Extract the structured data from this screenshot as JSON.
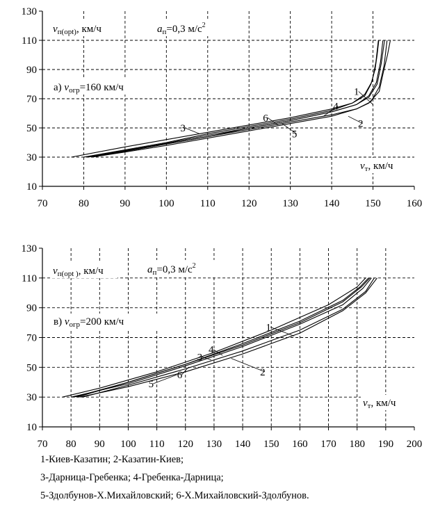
{
  "chart_data": [
    {
      "type": "line",
      "panel_label": "а)",
      "ylabel_main": "v",
      "ylabel_sub": "п(opt)",
      "ylabel_unit": ", км/ч",
      "accel_main": "a",
      "accel_sub": "п",
      "accel_value": "=0,3 м/с",
      "accel_exp": "2",
      "limit_main": "v",
      "limit_sub": "огр",
      "limit_value": "=160 км/ч",
      "xlabel_main": "v",
      "xlabel_sub": "т",
      "xlabel_unit": ", км/ч",
      "xlim": [
        70,
        160
      ],
      "ylim": [
        10,
        130
      ],
      "xticks": [
        70,
        80,
        90,
        100,
        110,
        120,
        130,
        140,
        150,
        160
      ],
      "yticks": [
        10,
        30,
        50,
        70,
        90,
        110,
        130
      ],
      "grid": true,
      "series": [
        {
          "name": "1",
          "x": [
            77,
            90,
            100,
            110,
            120,
            130,
            140,
            145,
            148,
            149.5,
            150.5,
            151,
            151.4
          ],
          "y": [
            30,
            37,
            42,
            47,
            52,
            57,
            63,
            67,
            72,
            80,
            90,
            100,
            110
          ]
        },
        {
          "name": "2",
          "x": [
            82,
            90,
            100,
            110,
            120,
            130,
            140,
            146,
            149,
            151.5,
            152.5,
            153.5,
            154.2
          ],
          "y": [
            30,
            34,
            39,
            44,
            49,
            54,
            59,
            63,
            67,
            75,
            88,
            100,
            110
          ]
        },
        {
          "name": "3",
          "x": [
            80,
            90,
            100,
            110,
            120,
            130,
            140,
            145,
            148,
            149.8,
            150.7,
            151.3
          ],
          "y": [
            30,
            35,
            40,
            46,
            51,
            56,
            62,
            67,
            73,
            82,
            95,
            110
          ]
        },
        {
          "name": "4",
          "x": [
            81,
            90,
            100,
            110,
            120,
            130,
            140,
            146,
            149,
            150.8,
            151.8,
            152.4
          ],
          "y": [
            30,
            34,
            39,
            44,
            50,
            55,
            61,
            66,
            72,
            81,
            95,
            110
          ]
        },
        {
          "name": "5",
          "x": [
            82,
            90,
            100,
            110,
            120,
            130,
            140,
            146,
            149.5,
            151.5,
            152.7,
            153.4
          ],
          "y": [
            30,
            33.5,
            38,
            43,
            48,
            53,
            58,
            63,
            68,
            78,
            93,
            110
          ]
        },
        {
          "name": "6",
          "x": [
            80,
            90,
            100,
            110,
            120,
            130,
            140,
            146,
            149,
            151,
            152,
            152.8
          ],
          "y": [
            30,
            34.5,
            39.5,
            45,
            50,
            55,
            61,
            66,
            71,
            80,
            94,
            110
          ]
        }
      ],
      "curve_labels": [
        {
          "text": "1",
          "x": 146,
          "y": 75,
          "tx": 150,
          "ty": 66
        },
        {
          "text": "4",
          "x": 141,
          "y": 65,
          "tx": 138,
          "ty": 58
        },
        {
          "text": "6",
          "x": 124,
          "y": 57,
          "tx": 127,
          "ty": 52
        },
        {
          "text": "3",
          "x": 104,
          "y": 50,
          "tx": 108,
          "ty": 46
        },
        {
          "text": "5",
          "x": 131,
          "y": 46,
          "tx": 128,
          "ty": 53
        },
        {
          "text": "2",
          "x": 147,
          "y": 53,
          "tx": 144,
          "ty": 58
        }
      ]
    },
    {
      "type": "line",
      "panel_label": "в)",
      "ylabel_main": "v",
      "ylabel_sub": "п(opt )",
      "ylabel_unit": ", км/ч",
      "accel_main": "a",
      "accel_sub": "п",
      "accel_value": "=0,3 м/с",
      "accel_exp": "2",
      "limit_main": "v",
      "limit_sub": "огр",
      "limit_value": "=200 км/ч",
      "xlabel_main": "v",
      "xlabel_sub": "т",
      "xlabel_unit": ", км/ч",
      "xlim": [
        70,
        200
      ],
      "ylim": [
        10,
        130
      ],
      "xticks": [
        70,
        80,
        90,
        100,
        110,
        120,
        130,
        140,
        150,
        160,
        170,
        180,
        190,
        200
      ],
      "yticks": [
        10,
        30,
        50,
        70,
        90,
        110,
        130
      ],
      "grid": true,
      "series": [
        {
          "name": "1",
          "x": [
            77,
            90,
            110,
            130,
            150,
            170,
            180,
            183
          ],
          "y": [
            30,
            36,
            47,
            60,
            75,
            92,
            104,
            110
          ]
        },
        {
          "name": "2",
          "x": [
            83,
            100,
            120,
            140,
            160,
            175,
            183,
            187
          ],
          "y": [
            30,
            37,
            47,
            59,
            73,
            88,
            100,
            110
          ]
        },
        {
          "name": "3",
          "x": [
            80,
            100,
            120,
            140,
            160,
            175,
            182,
            185
          ],
          "y": [
            30,
            39,
            51,
            64,
            79,
            92,
            103,
            110
          ]
        },
        {
          "name": "4",
          "x": [
            81,
            100,
            120,
            140,
            160,
            175,
            181.5,
            184.5
          ],
          "y": [
            30,
            40,
            52,
            65,
            80,
            94,
            104,
            110
          ]
        },
        {
          "name": "5",
          "x": [
            84,
            100,
            120,
            140,
            160,
            175,
            183,
            186
          ],
          "y": [
            30,
            38,
            49,
            61,
            75,
            89,
            101,
            110
          ]
        },
        {
          "name": "6",
          "x": [
            82,
            100,
            120,
            140,
            160,
            175,
            181,
            184
          ],
          "y": [
            30,
            40,
            52,
            66,
            81,
            95,
            104,
            110
          ]
        }
      ],
      "curve_labels": [
        {
          "text": "1",
          "x": 149,
          "y": 77,
          "tx": 158,
          "ty": 71
        },
        {
          "text": "4",
          "x": 129,
          "y": 62,
          "tx": 133,
          "ty": 58
        },
        {
          "text": "3",
          "x": 125,
          "y": 57,
          "tx": 129,
          "ty": 55
        },
        {
          "text": "2",
          "x": 147,
          "y": 47,
          "tx": 136,
          "ty": 56
        },
        {
          "text": "6",
          "x": 118,
          "y": 45,
          "tx": 121,
          "ty": 50
        },
        {
          "text": "5",
          "x": 108,
          "y": 39,
          "tx": 117,
          "ty": 45
        }
      ]
    }
  ],
  "legend": [
    "1-Киев-Казатин; 2-Казатин-Киев;",
    "3-Дарница-Гребенка; 4-Гребенка-Дарница;",
    "5-Здолбунов-Х.Михайловский; 6-Х.Михайловский-Здолбунов."
  ]
}
